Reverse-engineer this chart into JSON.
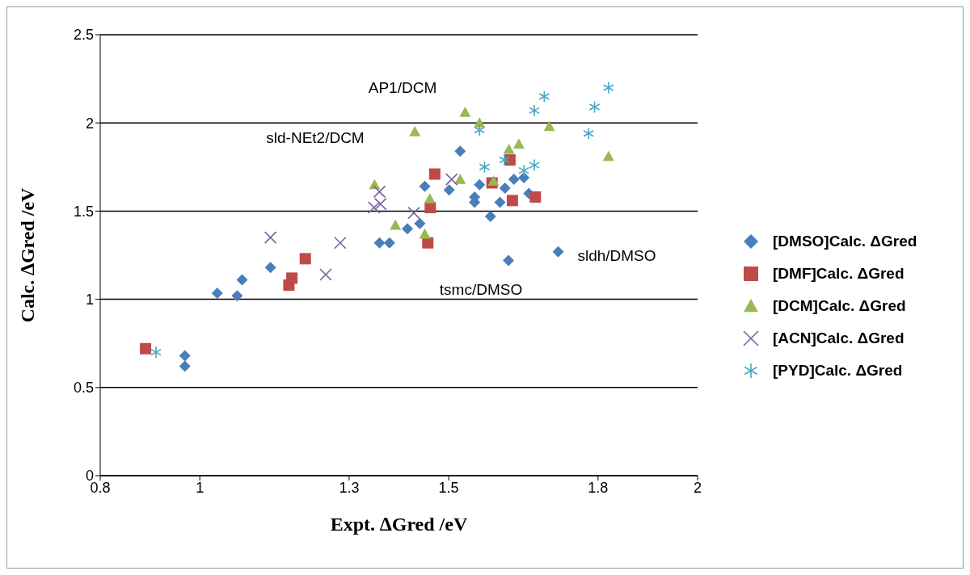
{
  "chart_data": {
    "type": "scatter",
    "xlabel": "Expt. ∆Gred /eV",
    "ylabel": "Calc. ∆Gred /eV",
    "xlim": [
      0.8,
      2
    ],
    "xticks": [
      0.8,
      1,
      1.3,
      1.5,
      1.8,
      2
    ],
    "ylim": [
      0,
      2.5
    ],
    "yticks": [
      0,
      0.5,
      1,
      1.5,
      2,
      2.5
    ],
    "grid": "y",
    "legend": "right",
    "series": [
      {
        "name": "[DMSO]Calc. ΔGred",
        "color": "#4a7ebb",
        "marker": "diamond",
        "x": [
          0.97,
          0.97,
          1.035,
          1.075,
          1.085,
          1.142,
          1.361,
          1.381,
          1.417,
          1.442,
          1.452,
          1.462,
          1.501,
          1.523,
          1.552,
          1.552,
          1.562,
          1.584,
          1.603,
          1.613,
          1.631,
          1.651,
          1.661,
          1.62,
          1.72
        ],
        "values": [
          0.62,
          0.68,
          1.035,
          1.02,
          1.11,
          1.18,
          1.32,
          1.32,
          1.4,
          1.43,
          1.64,
          null,
          1.62,
          1.84,
          1.58,
          1.55,
          1.65,
          1.47,
          1.55,
          1.63,
          1.68,
          1.69,
          1.6,
          1.22,
          1.27
        ]
      },
      {
        "name": "[DMF]Calc. ΔGred",
        "color": "#be4b48",
        "marker": "square",
        "x": [
          0.891,
          1.179,
          1.185,
          1.212,
          1.458,
          1.463,
          1.472,
          1.587,
          1.623,
          1.628,
          1.674
        ],
        "values": [
          0.72,
          1.08,
          1.12,
          1.23,
          1.32,
          1.52,
          1.71,
          1.66,
          1.79,
          1.56,
          1.58
        ]
      },
      {
        "name": "[DCM]Calc. ΔGred",
        "color": "#98b954",
        "marker": "triangle",
        "x": [
          1.351,
          1.393,
          1.432,
          1.452,
          1.462,
          1.523,
          1.533,
          1.562,
          1.59,
          1.621,
          1.641,
          1.702,
          1.821
        ],
        "values": [
          1.65,
          1.42,
          1.95,
          1.37,
          1.57,
          1.68,
          2.06,
          2.0,
          1.67,
          1.85,
          1.88,
          1.98,
          1.81
        ]
      },
      {
        "name": "[ACN]Calc. ΔGred",
        "color": "#7d60a0",
        "marker": "cross",
        "x": [
          1.142,
          1.253,
          1.282,
          1.35,
          1.363,
          1.361,
          1.43,
          1.506
        ],
        "values": [
          1.35,
          1.14,
          1.32,
          1.52,
          1.54,
          1.61,
          1.49,
          1.68
        ]
      },
      {
        "name": "[PYD]Calc. ΔGred",
        "color": "#46aac5",
        "x": [
          0.912,
          1.562,
          1.572,
          1.612,
          1.651,
          1.672,
          1.672,
          1.692,
          1.781,
          1.793,
          1.821
        ],
        "values": [
          0.7,
          1.96,
          1.75,
          1.79,
          1.73,
          1.76,
          2.07,
          2.15,
          1.94,
          2.09,
          2.2
        ]
      }
    ],
    "annotations": [
      "AP1/DCM",
      "sld-NEt2/DCM",
      "sldh/DMSO",
      "tsmc/DMSO"
    ]
  }
}
